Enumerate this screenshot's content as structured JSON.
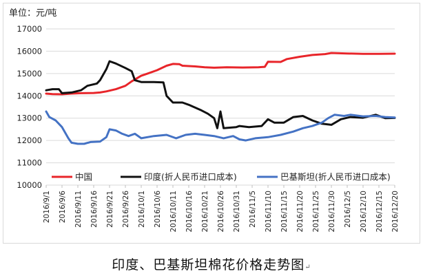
{
  "caption": "印度、巴基斯坦棉花价格走势图",
  "caption_mark": "↵",
  "chart_data": {
    "type": "line",
    "unit": "单位：元/吨",
    "ylim": [
      10000,
      17000
    ],
    "yticks": [
      10000,
      11000,
      12000,
      13000,
      14000,
      15000,
      16000,
      17000
    ],
    "grid": true,
    "legend_position": "bottom",
    "x_start": "2016/9/1",
    "x_end": "2016/12/20",
    "xticks": [
      "2016/9/1",
      "2016/9/6",
      "2016/9/11",
      "2016/9/16",
      "2016/9/21",
      "2016/9/26",
      "2016/10/1",
      "2016/10/6",
      "2016/10/11",
      "2016/10/16",
      "2016/10/21",
      "2016/10/26",
      "2016/10/31",
      "2016/11/5",
      "2016/11/10",
      "2016/11/15",
      "2016/11/20",
      "2016/11/25",
      "2016/11/30",
      "2016/12/5",
      "2016/12/10",
      "2016/12/15",
      "2016/12/20"
    ],
    "series": [
      {
        "name": "中国",
        "color": "#e8252a",
        "points": [
          [
            "2016/9/1",
            14100
          ],
          [
            "2016/9/3",
            14080
          ],
          [
            "2016/9/6",
            14070
          ],
          [
            "2016/9/9",
            14100
          ],
          [
            "2016/9/12",
            14120
          ],
          [
            "2016/9/16",
            14130
          ],
          [
            "2016/9/18",
            14150
          ],
          [
            "2016/9/20",
            14200
          ],
          [
            "2016/9/23",
            14300
          ],
          [
            "2016/9/26",
            14450
          ],
          [
            "2016/9/28",
            14650
          ],
          [
            "2016/10/1",
            14900
          ],
          [
            "2016/10/3",
            15000
          ],
          [
            "2016/10/6",
            15150
          ],
          [
            "2016/10/9",
            15350
          ],
          [
            "2016/10/11",
            15430
          ],
          [
            "2016/10/13",
            15420
          ],
          [
            "2016/10/14",
            15350
          ],
          [
            "2016/10/18",
            15320
          ],
          [
            "2016/10/21",
            15280
          ],
          [
            "2016/10/24",
            15260
          ],
          [
            "2016/10/28",
            15280
          ],
          [
            "2016/11/2",
            15270
          ],
          [
            "2016/11/7",
            15280
          ],
          [
            "2016/11/9",
            15300
          ],
          [
            "2016/11/10",
            15530
          ],
          [
            "2016/11/14",
            15520
          ],
          [
            "2016/11/16",
            15650
          ],
          [
            "2016/11/20",
            15750
          ],
          [
            "2016/11/24",
            15830
          ],
          [
            "2016/11/28",
            15870
          ],
          [
            "2016/11/30",
            15920
          ],
          [
            "2016/12/5",
            15900
          ],
          [
            "2016/12/10",
            15880
          ],
          [
            "2016/12/15",
            15880
          ],
          [
            "2016/12/20",
            15890
          ]
        ]
      },
      {
        "name": "印度(折人民币进口成本)",
        "color": "#111111",
        "points": [
          [
            "2016/9/1",
            14250
          ],
          [
            "2016/9/3",
            14300
          ],
          [
            "2016/9/5",
            14300
          ],
          [
            "2016/9/6",
            14120
          ],
          [
            "2016/9/9",
            14150
          ],
          [
            "2016/9/12",
            14250
          ],
          [
            "2016/9/14",
            14450
          ],
          [
            "2016/9/17",
            14550
          ],
          [
            "2016/9/18",
            14700
          ],
          [
            "2016/9/20",
            15200
          ],
          [
            "2016/9/21",
            15550
          ],
          [
            "2016/9/23",
            15450
          ],
          [
            "2016/9/26",
            15250
          ],
          [
            "2016/9/28",
            15100
          ],
          [
            "2016/9/29",
            14700
          ],
          [
            "2016/10/1",
            14620
          ],
          [
            "2016/10/5",
            14620
          ],
          [
            "2016/10/8",
            14600
          ],
          [
            "2016/10/9",
            14000
          ],
          [
            "2016/10/11",
            13700
          ],
          [
            "2016/10/14",
            13700
          ],
          [
            "2016/10/16",
            13600
          ],
          [
            "2016/10/20",
            13350
          ],
          [
            "2016/10/22",
            13200
          ],
          [
            "2016/10/24",
            13000
          ],
          [
            "2016/10/25",
            12550
          ],
          [
            "2016/10/26",
            13300
          ],
          [
            "2016/10/27",
            12550
          ],
          [
            "2016/10/31",
            12600
          ],
          [
            "2016/11/1",
            12650
          ],
          [
            "2016/11/4",
            12600
          ],
          [
            "2016/11/8",
            12650
          ],
          [
            "2016/11/10",
            12950
          ],
          [
            "2016/11/12",
            12800
          ],
          [
            "2016/11/15",
            12800
          ],
          [
            "2016/11/18",
            13050
          ],
          [
            "2016/11/21",
            13100
          ],
          [
            "2016/11/24",
            12900
          ],
          [
            "2016/11/27",
            12750
          ],
          [
            "2016/11/30",
            12700
          ],
          [
            "2016/12/3",
            12950
          ],
          [
            "2016/12/6",
            13050
          ],
          [
            "2016/12/10",
            13020
          ],
          [
            "2016/12/14",
            13150
          ],
          [
            "2016/12/17",
            13000
          ],
          [
            "2016/12/20",
            13010
          ]
        ]
      },
      {
        "name": "巴基斯坦(折人民币进口成本)",
        "color": "#4472c4",
        "points": [
          [
            "2016/9/1",
            13300
          ],
          [
            "2016/9/2",
            13050
          ],
          [
            "2016/9/4",
            12900
          ],
          [
            "2016/9/6",
            12600
          ],
          [
            "2016/9/8",
            12100
          ],
          [
            "2016/9/9",
            11900
          ],
          [
            "2016/9/11",
            11850
          ],
          [
            "2016/9/13",
            11850
          ],
          [
            "2016/9/15",
            11930
          ],
          [
            "2016/9/18",
            11950
          ],
          [
            "2016/9/20",
            12150
          ],
          [
            "2016/9/21",
            12500
          ],
          [
            "2016/9/23",
            12450
          ],
          [
            "2016/9/25",
            12300
          ],
          [
            "2016/9/27",
            12200
          ],
          [
            "2016/9/29",
            12300
          ],
          [
            "2016/10/1",
            12100
          ],
          [
            "2016/10/5",
            12200
          ],
          [
            "2016/10/9",
            12250
          ],
          [
            "2016/10/12",
            12100
          ],
          [
            "2016/10/15",
            12250
          ],
          [
            "2016/10/18",
            12300
          ],
          [
            "2016/10/21",
            12250
          ],
          [
            "2016/10/24",
            12200
          ],
          [
            "2016/10/27",
            12100
          ],
          [
            "2016/10/30",
            12200
          ],
          [
            "2016/11/1",
            12050
          ],
          [
            "2016/11/3",
            12000
          ],
          [
            "2016/11/6",
            12100
          ],
          [
            "2016/11/10",
            12150
          ],
          [
            "2016/11/14",
            12250
          ],
          [
            "2016/11/18",
            12400
          ],
          [
            "2016/11/21",
            12550
          ],
          [
            "2016/11/24",
            12650
          ],
          [
            "2016/11/27",
            12800
          ],
          [
            "2016/11/29",
            13000
          ],
          [
            "2016/12/1",
            13150
          ],
          [
            "2016/12/4",
            13100
          ],
          [
            "2016/12/6",
            13150
          ],
          [
            "2016/12/10",
            13080
          ],
          [
            "2016/12/14",
            13100
          ],
          [
            "2016/12/17",
            13050
          ],
          [
            "2016/12/20",
            13030
          ]
        ]
      }
    ]
  }
}
